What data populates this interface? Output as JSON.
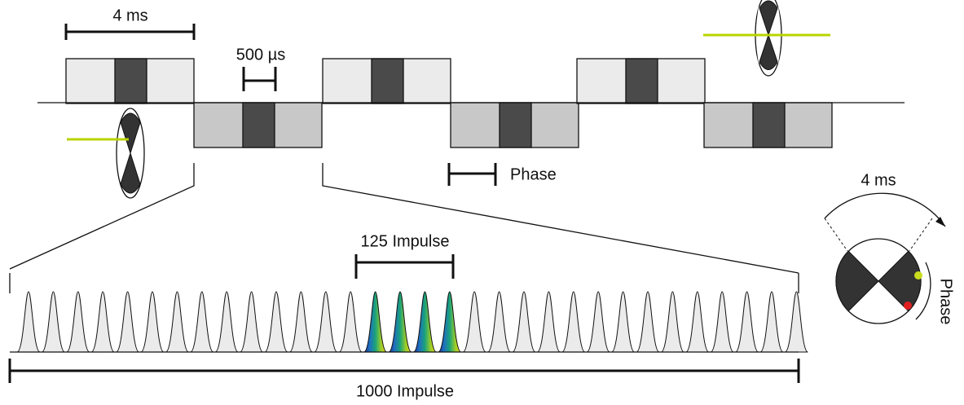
{
  "labels": {
    "period_top": "4 ms",
    "pulse_width": "500 µs",
    "phase": "Phase",
    "impulse_group": "125 Impulse",
    "impulse_total": "1000 Impulse",
    "period_circle": "4 ms",
    "phase_circle": "Phase"
  }
}
